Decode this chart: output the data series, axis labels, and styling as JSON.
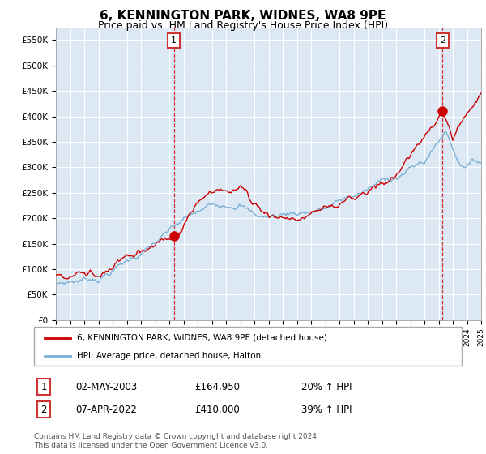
{
  "title": "6, KENNINGTON PARK, WIDNES, WA8 9PE",
  "subtitle": "Price paid vs. HM Land Registry's House Price Index (HPI)",
  "title_fontsize": 11,
  "subtitle_fontsize": 9,
  "background_color": "#ffffff",
  "plot_bg_color": "#dce9f5",
  "grid_color": "#ffffff",
  "ylim": [
    0,
    575000
  ],
  "yticks": [
    0,
    50000,
    100000,
    150000,
    200000,
    250000,
    300000,
    350000,
    400000,
    450000,
    500000,
    550000
  ],
  "ytick_labels": [
    "£0",
    "£50K",
    "£100K",
    "£150K",
    "£200K",
    "£250K",
    "£300K",
    "£350K",
    "£400K",
    "£450K",
    "£500K",
    "£550K"
  ],
  "sale1_year": 2003.33,
  "sale1_price": 164950,
  "sale1_label": "1",
  "sale1_date": "02-MAY-2003",
  "sale1_price_str": "£164,950",
  "sale1_hpi": "20% ↑ HPI",
  "sale2_year": 2022.27,
  "sale2_price": 410000,
  "sale2_label": "2",
  "sale2_date": "07-APR-2022",
  "sale2_price_str": "£410,000",
  "sale2_hpi": "39% ↑ HPI",
  "red_color": "#cc0000",
  "blue_color": "#7ab0d4",
  "legend_label_red": "6, KENNINGTON PARK, WIDNES, WA8 9PE (detached house)",
  "legend_label_blue": "HPI: Average price, detached house, Halton",
  "footer_text": "Contains HM Land Registry data © Crown copyright and database right 2024.\nThis data is licensed under the Open Government Licence v3.0.",
  "xstart": 1995,
  "xend": 2025
}
